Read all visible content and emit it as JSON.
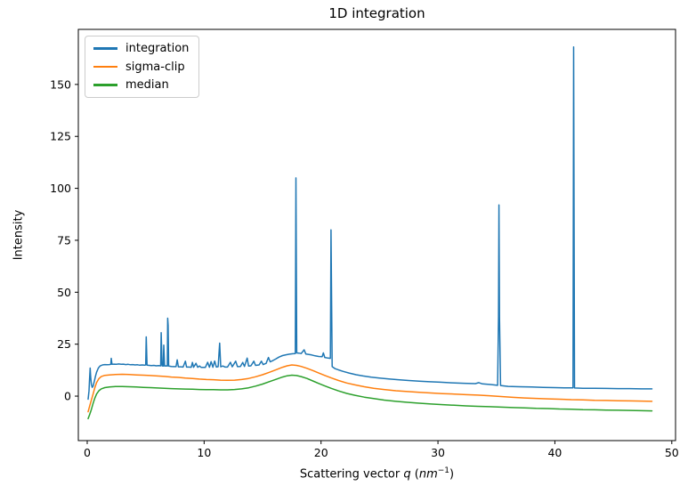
{
  "chart_data": {
    "type": "line",
    "title": "1D integration",
    "ylabel": "Intensity",
    "xlabel": {
      "prefix": "Scattering vector ",
      "variable": "q",
      "open": " (",
      "unit": "nm",
      "exponent": "−1",
      "close": ")"
    },
    "xlim": [
      -0.76,
      50.32
    ],
    "ylim": [
      -21.4,
      176.5
    ],
    "xticks": [
      0,
      10,
      20,
      30,
      40,
      50
    ],
    "yticks": [
      0,
      25,
      50,
      75,
      100,
      125,
      150
    ],
    "grid": false,
    "legend_position": "upper left",
    "frame_color": "#000000",
    "series": [
      {
        "name": "integration",
        "color": "#1f77b4",
        "points": [
          [
            0.08,
            -1.5
          ],
          [
            0.15,
            2.5
          ],
          [
            0.2,
            8
          ],
          [
            0.25,
            13.5
          ],
          [
            0.3,
            9
          ],
          [
            0.36,
            5.5
          ],
          [
            0.43,
            4.2
          ],
          [
            0.5,
            4.8
          ],
          [
            0.6,
            7
          ],
          [
            0.7,
            9.5
          ],
          [
            0.8,
            11.5
          ],
          [
            0.95,
            13.5
          ],
          [
            1.1,
            14.5
          ],
          [
            1.3,
            15
          ],
          [
            1.5,
            15.2
          ],
          [
            1.7,
            15.1
          ],
          [
            1.9,
            15.2
          ],
          [
            2.02,
            15.3
          ],
          [
            2.06,
            18.2
          ],
          [
            2.12,
            15.3
          ],
          [
            2.3,
            15.4
          ],
          [
            2.5,
            15.3
          ],
          [
            2.7,
            15.5
          ],
          [
            2.9,
            15.3
          ],
          [
            3.1,
            15.4
          ],
          [
            3.3,
            15.2
          ],
          [
            3.5,
            15.3
          ],
          [
            3.7,
            15.1
          ],
          [
            3.9,
            15.2
          ],
          [
            4.1,
            15
          ],
          [
            4.3,
            15.1
          ],
          [
            4.5,
            14.9
          ],
          [
            4.7,
            15
          ],
          [
            4.9,
            14.9
          ],
          [
            5.0,
            15
          ],
          [
            5.05,
            28.5
          ],
          [
            5.12,
            14.9
          ],
          [
            5.3,
            14.8
          ],
          [
            5.5,
            14.7
          ],
          [
            5.7,
            14.8
          ],
          [
            5.9,
            14.6
          ],
          [
            6.1,
            14.7
          ],
          [
            6.28,
            14.6
          ],
          [
            6.33,
            30.5
          ],
          [
            6.4,
            14.6
          ],
          [
            6.5,
            14.5
          ],
          [
            6.55,
            24.5
          ],
          [
            6.62,
            14.5
          ],
          [
            6.75,
            14.6
          ],
          [
            6.85,
            14.5
          ],
          [
            6.88,
            37.5
          ],
          [
            6.92,
            34
          ],
          [
            6.97,
            14.5
          ],
          [
            7.2,
            14.3
          ],
          [
            7.4,
            14.2
          ],
          [
            7.6,
            14.2
          ],
          [
            7.7,
            17.5
          ],
          [
            7.8,
            14.1
          ],
          [
            8.0,
            14.1
          ],
          [
            8.2,
            14
          ],
          [
            8.4,
            16.8
          ],
          [
            8.5,
            14
          ],
          [
            8.7,
            14
          ],
          [
            8.9,
            13.9
          ],
          [
            9.0,
            16.2
          ],
          [
            9.1,
            13.9
          ],
          [
            9.3,
            15.8
          ],
          [
            9.45,
            13.9
          ],
          [
            9.6,
            14.5
          ],
          [
            9.75,
            13.8
          ],
          [
            9.9,
            13.8
          ],
          [
            10.1,
            13.8
          ],
          [
            10.3,
            16.3
          ],
          [
            10.45,
            13.9
          ],
          [
            10.6,
            16.6
          ],
          [
            10.75,
            13.9
          ],
          [
            10.9,
            16.9
          ],
          [
            11.05,
            14
          ],
          [
            11.2,
            14.2
          ],
          [
            11.33,
            25.5
          ],
          [
            11.42,
            14.1
          ],
          [
            11.6,
            14.5
          ],
          [
            11.8,
            14
          ],
          [
            12.0,
            14
          ],
          [
            12.25,
            16.3
          ],
          [
            12.4,
            14.1
          ],
          [
            12.7,
            16.8
          ],
          [
            12.85,
            14.2
          ],
          [
            13.1,
            14.3
          ],
          [
            13.3,
            16.2
          ],
          [
            13.45,
            14.3
          ],
          [
            13.68,
            18.3
          ],
          [
            13.8,
            14.5
          ],
          [
            14.0,
            14.6
          ],
          [
            14.25,
            16.8
          ],
          [
            14.4,
            14.8
          ],
          [
            14.7,
            15
          ],
          [
            14.9,
            16.8
          ],
          [
            15.05,
            15.2
          ],
          [
            15.3,
            15.8
          ],
          [
            15.5,
            18.6
          ],
          [
            15.65,
            16.5
          ],
          [
            15.9,
            17.2
          ],
          [
            16.1,
            17.8
          ],
          [
            16.4,
            18.8
          ],
          [
            16.7,
            19.5
          ],
          [
            17.0,
            19.9
          ],
          [
            17.3,
            20.2
          ],
          [
            17.6,
            20.4
          ],
          [
            17.8,
            20.5
          ],
          [
            17.85,
            105
          ],
          [
            17.92,
            20.8
          ],
          [
            18.1,
            20.7
          ],
          [
            18.3,
            20.5
          ],
          [
            18.55,
            22.3
          ],
          [
            18.7,
            20.3
          ],
          [
            18.9,
            20.1
          ],
          [
            19.2,
            19.8
          ],
          [
            19.5,
            19.4
          ],
          [
            19.8,
            19.1
          ],
          [
            20.1,
            19
          ],
          [
            20.2,
            20.8
          ],
          [
            20.32,
            18.6
          ],
          [
            20.6,
            18.3
          ],
          [
            20.8,
            18.2
          ],
          [
            20.85,
            80
          ],
          [
            20.95,
            14.2
          ],
          [
            21.2,
            13.2
          ],
          [
            21.5,
            12.6
          ],
          [
            21.9,
            11.9
          ],
          [
            22.4,
            11.1
          ],
          [
            23.0,
            10.3
          ],
          [
            23.6,
            9.7
          ],
          [
            24.3,
            9.1
          ],
          [
            25.0,
            8.7
          ],
          [
            25.8,
            8.3
          ],
          [
            26.6,
            7.9
          ],
          [
            27.5,
            7.5
          ],
          [
            28.4,
            7.2
          ],
          [
            29.3,
            6.9
          ],
          [
            30.2,
            6.7
          ],
          [
            31.2,
            6.4
          ],
          [
            32.2,
            6.2
          ],
          [
            33.2,
            6
          ],
          [
            33.5,
            6.5
          ],
          [
            33.8,
            5.9
          ],
          [
            34.5,
            5.6
          ],
          [
            35.1,
            5.2
          ],
          [
            35.18,
            38
          ],
          [
            35.22,
            92
          ],
          [
            35.26,
            38
          ],
          [
            35.35,
            5.1
          ],
          [
            36.0,
            4.7
          ],
          [
            37.0,
            4.5
          ],
          [
            38.0,
            4.4
          ],
          [
            39.0,
            4.2
          ],
          [
            40.0,
            4.1
          ],
          [
            40.8,
            4
          ],
          [
            41.55,
            4
          ],
          [
            41.6,
            168
          ],
          [
            41.68,
            3.9
          ],
          [
            42.4,
            3.8
          ],
          [
            43.4,
            3.8
          ],
          [
            44.4,
            3.7
          ],
          [
            45.4,
            3.6
          ],
          [
            46.4,
            3.6
          ],
          [
            47.4,
            3.5
          ],
          [
            48.3,
            3.5
          ]
        ]
      },
      {
        "name": "sigma-clip",
        "color": "#ff7f0e",
        "points": [
          [
            0.08,
            -7.5
          ],
          [
            0.2,
            -5
          ],
          [
            0.35,
            -2
          ],
          [
            0.5,
            1
          ],
          [
            0.65,
            4
          ],
          [
            0.8,
            6.5
          ],
          [
            1.0,
            8.4
          ],
          [
            1.2,
            9.4
          ],
          [
            1.5,
            10
          ],
          [
            1.9,
            10.2
          ],
          [
            2.4,
            10.4
          ],
          [
            3.0,
            10.5
          ],
          [
            3.6,
            10.4
          ],
          [
            4.2,
            10.2
          ],
          [
            4.8,
            10.1
          ],
          [
            5.4,
            9.9
          ],
          [
            6.0,
            9.7
          ],
          [
            6.6,
            9.5
          ],
          [
            7.2,
            9.2
          ],
          [
            7.8,
            9
          ],
          [
            8.4,
            8.7
          ],
          [
            9.0,
            8.5
          ],
          [
            9.6,
            8.2
          ],
          [
            10.2,
            8
          ],
          [
            10.8,
            7.9
          ],
          [
            11.4,
            7.7
          ],
          [
            12.0,
            7.6
          ],
          [
            12.6,
            7.7
          ],
          [
            13.2,
            8
          ],
          [
            13.8,
            8.5
          ],
          [
            14.4,
            9.3
          ],
          [
            15.0,
            10.3
          ],
          [
            15.6,
            11.5
          ],
          [
            16.2,
            12.8
          ],
          [
            16.7,
            13.9
          ],
          [
            17.1,
            14.6
          ],
          [
            17.5,
            15
          ],
          [
            17.9,
            14.8
          ],
          [
            18.3,
            14.3
          ],
          [
            18.8,
            13.4
          ],
          [
            19.3,
            12.3
          ],
          [
            19.8,
            11.1
          ],
          [
            20.3,
            10
          ],
          [
            20.9,
            8.7
          ],
          [
            21.5,
            7.5
          ],
          [
            22.2,
            6.3
          ],
          [
            22.9,
            5.4
          ],
          [
            23.7,
            4.5
          ],
          [
            24.5,
            3.8
          ],
          [
            25.4,
            3.2
          ],
          [
            26.4,
            2.6
          ],
          [
            27.4,
            2.2
          ],
          [
            28.4,
            1.8
          ],
          [
            29.4,
            1.5
          ],
          [
            30.4,
            1.2
          ],
          [
            31.4,
            1
          ],
          [
            32.4,
            0.7
          ],
          [
            33.4,
            0.5
          ],
          [
            34.4,
            0.2
          ],
          [
            35.4,
            -0.2
          ],
          [
            36.4,
            -0.6
          ],
          [
            37.4,
            -0.9
          ],
          [
            38.4,
            -1.1
          ],
          [
            39.4,
            -1.3
          ],
          [
            40.4,
            -1.5
          ],
          [
            41.4,
            -1.7
          ],
          [
            42.4,
            -1.8
          ],
          [
            43.4,
            -2
          ],
          [
            44.4,
            -2.1
          ],
          [
            45.4,
            -2.2
          ],
          [
            46.4,
            -2.3
          ],
          [
            47.4,
            -2.4
          ],
          [
            48.3,
            -2.5
          ]
        ]
      },
      {
        "name": "median",
        "color": "#2ca02c",
        "points": [
          [
            0.08,
            -10.8
          ],
          [
            0.2,
            -9
          ],
          [
            0.35,
            -6.5
          ],
          [
            0.5,
            -3.5
          ],
          [
            0.65,
            -1
          ],
          [
            0.8,
            1
          ],
          [
            1.0,
            2.6
          ],
          [
            1.2,
            3.5
          ],
          [
            1.5,
            4.1
          ],
          [
            1.9,
            4.4
          ],
          [
            2.4,
            4.6
          ],
          [
            3.0,
            4.6
          ],
          [
            3.6,
            4.5
          ],
          [
            4.2,
            4.4
          ],
          [
            4.8,
            4.2
          ],
          [
            5.4,
            4.1
          ],
          [
            6.0,
            3.9
          ],
          [
            6.6,
            3.8
          ],
          [
            7.2,
            3.6
          ],
          [
            7.8,
            3.5
          ],
          [
            8.4,
            3.4
          ],
          [
            9.0,
            3.3
          ],
          [
            9.6,
            3.2
          ],
          [
            10.2,
            3.1
          ],
          [
            10.8,
            3.1
          ],
          [
            11.4,
            3
          ],
          [
            12.0,
            3
          ],
          [
            12.6,
            3.2
          ],
          [
            13.2,
            3.5
          ],
          [
            13.8,
            4
          ],
          [
            14.4,
            4.8
          ],
          [
            15.0,
            5.8
          ],
          [
            15.6,
            7
          ],
          [
            16.2,
            8.2
          ],
          [
            16.7,
            9.2
          ],
          [
            17.1,
            9.8
          ],
          [
            17.5,
            10.1
          ],
          [
            17.9,
            9.9
          ],
          [
            18.3,
            9.4
          ],
          [
            18.8,
            8.5
          ],
          [
            19.3,
            7.3
          ],
          [
            19.8,
            6.1
          ],
          [
            20.3,
            5
          ],
          [
            20.9,
            3.7
          ],
          [
            21.5,
            2.5
          ],
          [
            22.2,
            1.3
          ],
          [
            22.9,
            0.4
          ],
          [
            23.7,
            -0.5
          ],
          [
            24.5,
            -1.2
          ],
          [
            25.4,
            -1.9
          ],
          [
            26.4,
            -2.5
          ],
          [
            27.4,
            -3
          ],
          [
            28.4,
            -3.4
          ],
          [
            29.4,
            -3.8
          ],
          [
            30.4,
            -4.1
          ],
          [
            31.4,
            -4.4
          ],
          [
            32.4,
            -4.7
          ],
          [
            33.4,
            -4.9
          ],
          [
            34.4,
            -5.1
          ],
          [
            35.4,
            -5.3
          ],
          [
            36.4,
            -5.5
          ],
          [
            37.4,
            -5.7
          ],
          [
            38.4,
            -5.9
          ],
          [
            39.4,
            -6
          ],
          [
            40.4,
            -6.2
          ],
          [
            41.4,
            -6.3
          ],
          [
            42.4,
            -6.5
          ],
          [
            43.4,
            -6.6
          ],
          [
            44.4,
            -6.7
          ],
          [
            45.4,
            -6.8
          ],
          [
            46.4,
            -6.9
          ],
          [
            47.4,
            -7
          ],
          [
            48.3,
            -7.1
          ]
        ]
      }
    ]
  }
}
